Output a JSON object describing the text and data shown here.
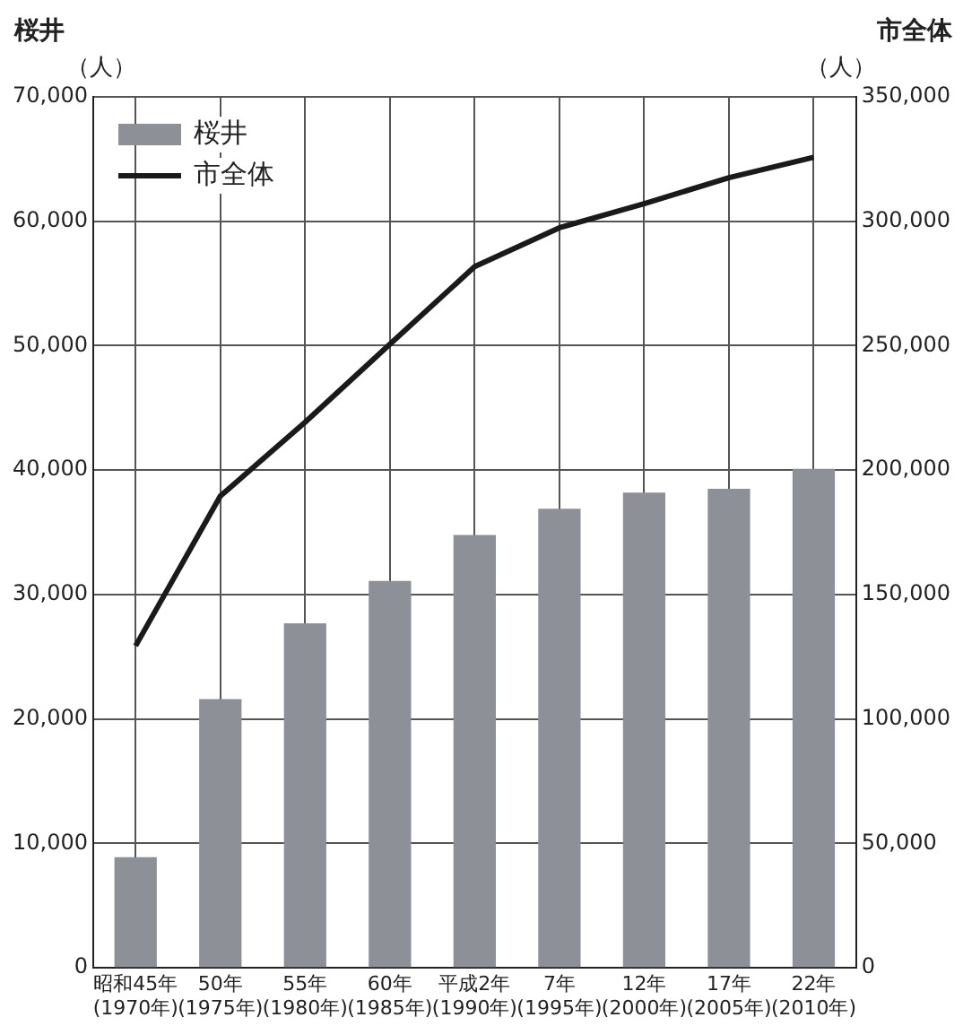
{
  "chart_data": {
    "type": "bar",
    "ylabel": "桜井",
    "y2label": "市全体",
    "annotations": [
      "（人）",
      "（人）"
    ],
    "categories": [
      "昭和45年\n(1970年)",
      "50年\n(1975年)",
      "55年\n(1980年)",
      "60年\n(1985年)",
      "平成2年\n(1990年)",
      "7年\n(1995年)",
      "12年\n(2000年)",
      "17年\n(2005年)",
      "22年\n(2010年)"
    ],
    "series": [
      {
        "name": "桜井",
        "color": "#8e9098",
        "values": [
          8900,
          21600,
          27700,
          31100,
          34800,
          36900,
          38200,
          38500,
          40100
        ]
      },
      {
        "name": "市全体",
        "type": "line",
        "axis": "y2",
        "color": "#1a1a1a",
        "values": [
          129400,
          189600,
          219300,
          250600,
          281800,
          297400,
          307100,
          317500,
          325700
        ]
      }
    ],
    "ylim": [
      0,
      70000
    ],
    "yticks": [
      0,
      {
        "value": 10000,
        "label": "10,000"
      },
      {
        "value": 20000,
        "label": "20,000"
      },
      {
        "value": 30000,
        "label": "30,000"
      },
      {
        "value": 40000,
        "label": "40,000"
      },
      {
        "value": 50000,
        "label": "50,000"
      },
      {
        "value": 60000,
        "label": "60,000"
      },
      {
        "value": 70000,
        "label": "70,000"
      }
    ],
    "y2lim": [
      0,
      350000
    ],
    "y2ticks": [
      0,
      {
        "value": 50000,
        "label": "50,000"
      },
      {
        "value": 100000,
        "label": "100,000"
      },
      {
        "value": 150000,
        "label": "150,000"
      },
      {
        "value": 200000,
        "label": "200,000"
      },
      {
        "value": 250000,
        "label": "250,000"
      },
      {
        "value": 300000,
        "label": "300,000"
      },
      {
        "value": 350000,
        "label": "350,000"
      }
    ],
    "grid": true,
    "legend": "top left",
    "marker": "none",
    "line_style": "solid"
  }
}
